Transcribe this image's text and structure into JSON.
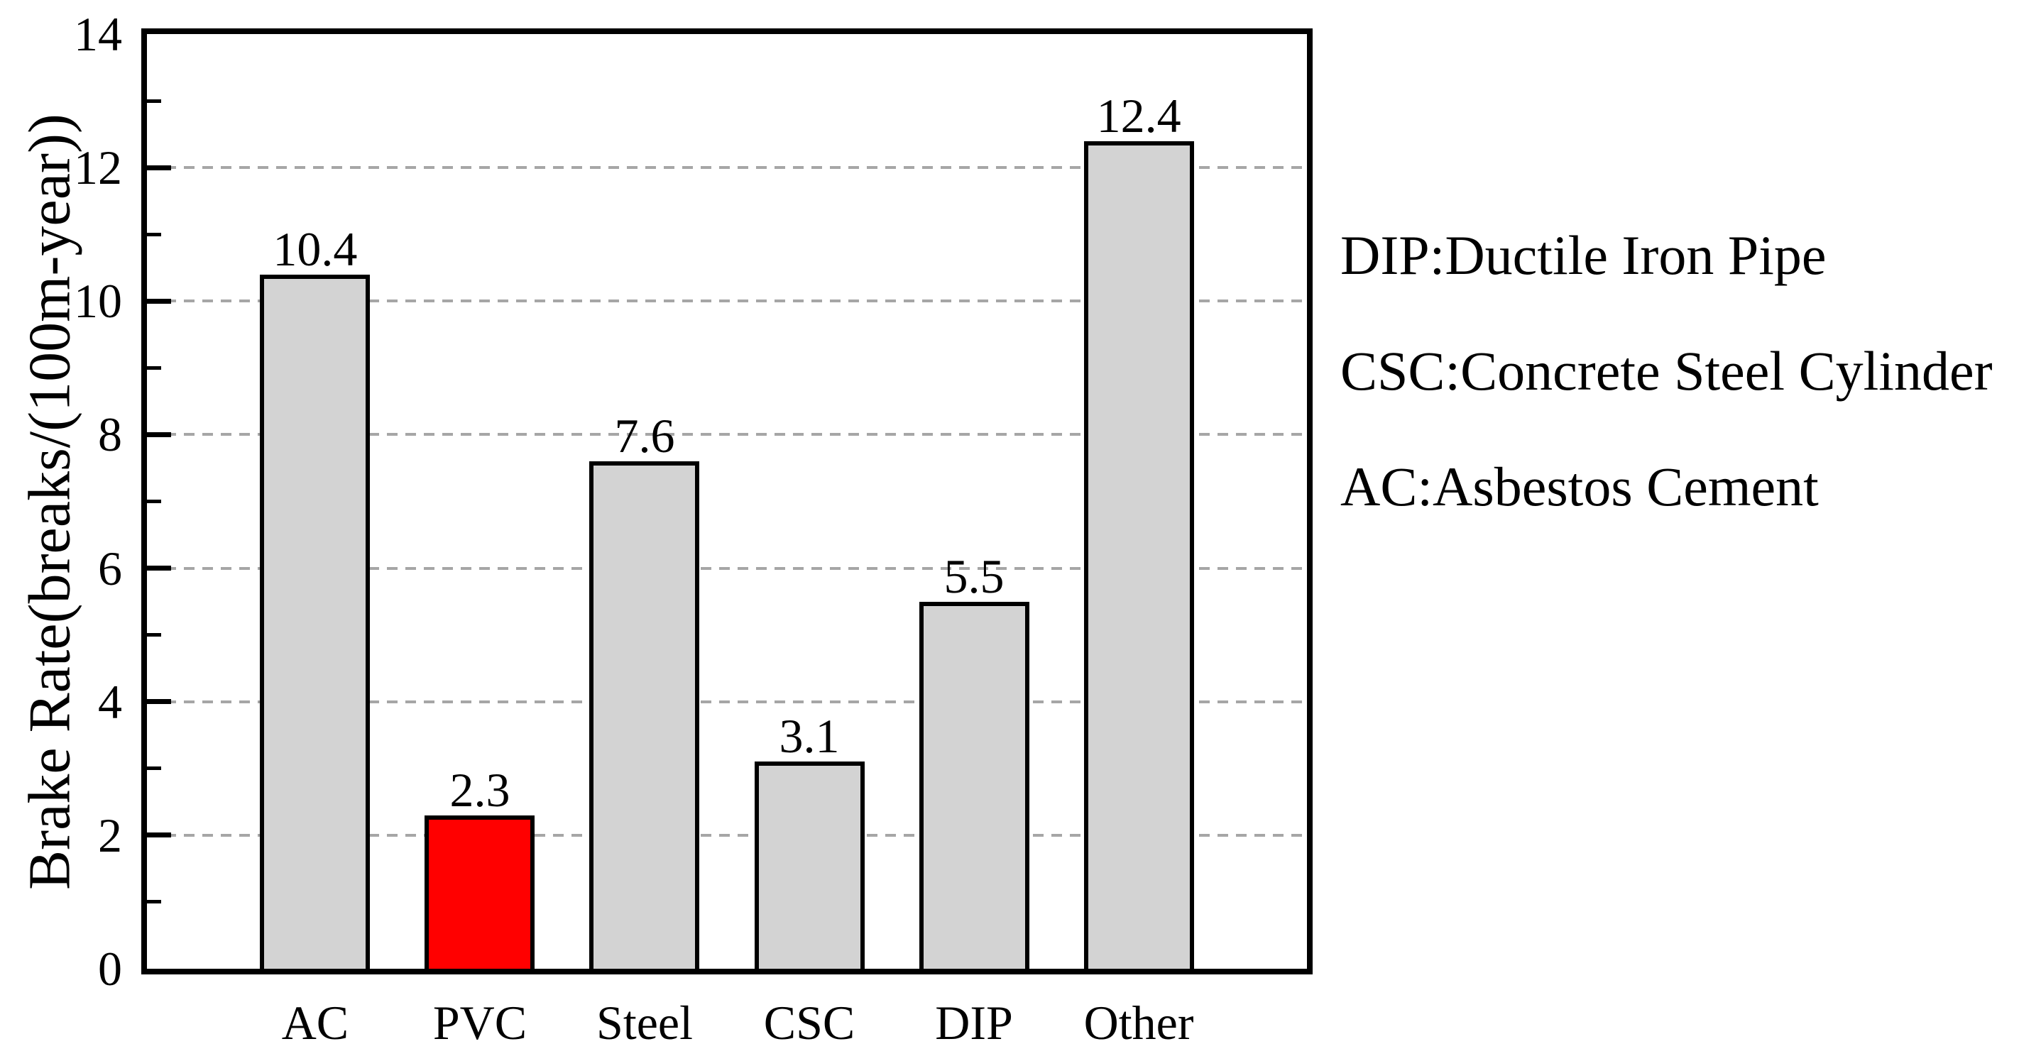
{
  "chart_data": {
    "type": "bar",
    "title": "",
    "xlabel": "",
    "ylabel": "Brake Rate(breaks/(100m-year))",
    "categories": [
      "AC",
      "PVC",
      "Steel",
      "CSC",
      "DIP",
      "Other"
    ],
    "values": [
      10.4,
      2.3,
      7.6,
      3.1,
      5.5,
      12.4
    ],
    "bar_labels": [
      "10.4",
      "2.3",
      "7.6",
      "3.1",
      "5.5",
      "12.4"
    ],
    "ylim": [
      0,
      14
    ],
    "ytick_values": [
      0,
      2,
      4,
      6,
      8,
      10,
      12,
      14
    ],
    "ytick_labels": [
      "0",
      "2",
      "4",
      "6",
      "8",
      "10",
      "12",
      "14"
    ],
    "yminor_tick_values": [
      1,
      3,
      5,
      7,
      9,
      11,
      13
    ],
    "gridline_values": [
      2,
      4,
      6,
      8,
      10,
      12
    ],
    "grid_style": "horizontal dashed at even major ticks",
    "legend_position": "right of plot area",
    "highlight_index": 1,
    "colors": {
      "bar_fill_default": "#d3d3d3",
      "bar_fill_highlight": "#ff0000",
      "bar_edge": "#000000",
      "gridline": "#a6a6a6",
      "frame": "#000000",
      "text": "#000000"
    },
    "annotations": [
      "DIP:Ductile Iron Pipe",
      "CSC:Concrete Steel Cylinder",
      "AC:Asbestos Cement"
    ]
  }
}
